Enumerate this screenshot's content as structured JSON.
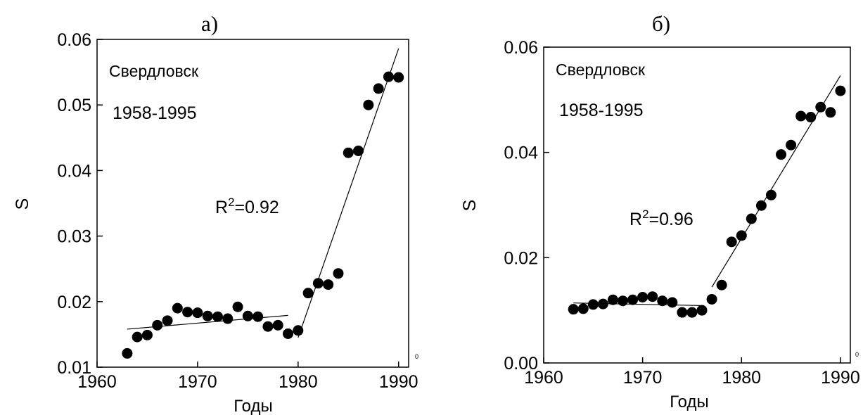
{
  "chart_data": [
    {
      "type": "scatter",
      "panel_label": "а)",
      "xlabel": "Годы",
      "ylabel": "S",
      "xlim": [
        1960,
        1991
      ],
      "ylim": [
        0.01,
        0.06
      ],
      "xticks": [
        1960,
        1970,
        1980,
        1990
      ],
      "yticks": [
        0.01,
        0.02,
        0.03,
        0.04,
        0.05,
        0.06
      ],
      "xtick_labels": [
        "1960",
        "1970",
        "1980",
        "1990"
      ],
      "ytick_labels": [
        "0.01",
        "0.02",
        "0.03",
        "0.04",
        "0.05",
        "0.06"
      ],
      "corner_mark": "0",
      "grid": false,
      "annotations": {
        "city": "Свердловск",
        "period": "1958-1995",
        "r2_base": "R",
        "r2_sup": "2",
        "r2_value": "=0.92"
      },
      "points": {
        "x": [
          1963,
          1964,
          1965,
          1966,
          1967,
          1968,
          1969,
          1970,
          1971,
          1972,
          1973,
          1974,
          1975,
          1976,
          1977,
          1978,
          1979,
          1980,
          1981,
          1982,
          1983,
          1984,
          1985,
          1986,
          1987,
          1988,
          1989,
          1990
        ],
        "y": [
          0.0121,
          0.0146,
          0.0149,
          0.0164,
          0.0171,
          0.019,
          0.0184,
          0.0183,
          0.0178,
          0.0177,
          0.0174,
          0.0192,
          0.0178,
          0.0177,
          0.0162,
          0.0164,
          0.0151,
          0.0156,
          0.0213,
          0.0228,
          0.0226,
          0.0243,
          0.0427,
          0.043,
          0.05,
          0.0525,
          0.0543,
          0.0542
        ]
      },
      "fit_lines": [
        {
          "x": [
            1963,
            1979
          ],
          "y": [
            0.0158,
            0.0179
          ]
        },
        {
          "x": [
            1980,
            1990
          ],
          "y": [
            0.0145,
            0.0586
          ]
        }
      ]
    },
    {
      "type": "scatter",
      "panel_label": "б)",
      "xlabel": "Годы",
      "ylabel": "S",
      "xlim": [
        1960,
        1991
      ],
      "ylim": [
        0.0,
        0.06
      ],
      "xticks": [
        1960,
        1970,
        1980,
        1990
      ],
      "yticks": [
        0.0,
        0.02,
        0.04,
        0.06
      ],
      "xtick_labels": [
        "1960",
        "1970",
        "1980",
        "1990"
      ],
      "ytick_labels": [
        "0.00",
        "0.02",
        "0.04",
        "0.06"
      ],
      "corner_mark": "0",
      "grid": false,
      "annotations": {
        "city": "Свердловск",
        "period": "1958-1995",
        "r2_base": "R",
        "r2_sup": "2",
        "r2_value": "=0.96"
      },
      "points": {
        "x": [
          1963,
          1964,
          1965,
          1966,
          1967,
          1968,
          1969,
          1970,
          1971,
          1972,
          1973,
          1974,
          1975,
          1976,
          1977,
          1978,
          1979,
          1980,
          1981,
          1982,
          1983,
          1984,
          1985,
          1986,
          1987,
          1988,
          1989,
          1990
        ],
        "y": [
          0.0102,
          0.0103,
          0.0111,
          0.0112,
          0.012,
          0.0118,
          0.012,
          0.0125,
          0.0126,
          0.0118,
          0.0115,
          0.0096,
          0.0096,
          0.01,
          0.0121,
          0.0148,
          0.023,
          0.0242,
          0.0274,
          0.0299,
          0.0319,
          0.0396,
          0.0414,
          0.0469,
          0.0467,
          0.0486,
          0.0476,
          0.0517
        ]
      },
      "fit_lines": [
        {
          "x": [
            1963,
            1976
          ],
          "y": [
            0.0114,
            0.0109
          ]
        },
        {
          "x": [
            1977,
            1990
          ],
          "y": [
            0.0144,
            0.0546
          ]
        }
      ]
    }
  ]
}
